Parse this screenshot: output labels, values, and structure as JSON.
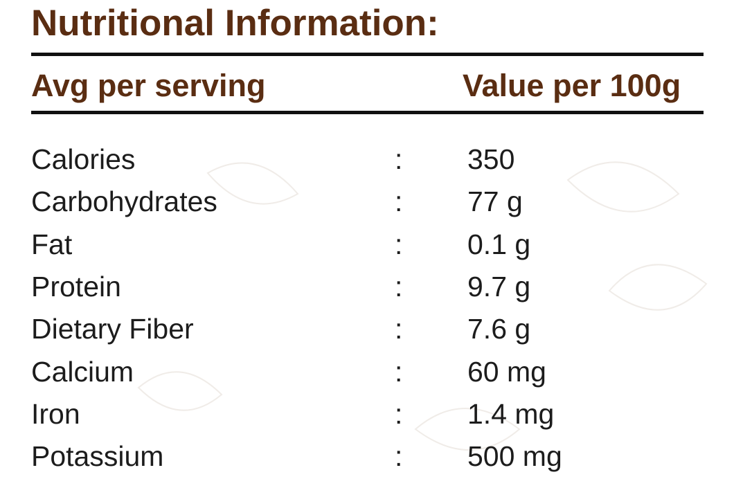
{
  "title": "Nutritional Information:",
  "table": {
    "header": [
      "Avg per serving",
      "Value per 100g"
    ],
    "rows": [
      [
        "Calories",
        ":",
        "350"
      ],
      [
        "Carbohydrates",
        ":",
        "77 g"
      ],
      [
        "Fat",
        ":",
        "0.1 g"
      ],
      [
        "Protein",
        ":",
        "9.7 g"
      ],
      [
        "Dietary Fiber",
        ":",
        "7.6 g"
      ],
      [
        "Calcium",
        ":",
        "60 mg"
      ],
      [
        "Iron",
        ":",
        "1.4 mg"
      ],
      [
        "Potassium",
        ":",
        "500 mg"
      ]
    ]
  }
}
